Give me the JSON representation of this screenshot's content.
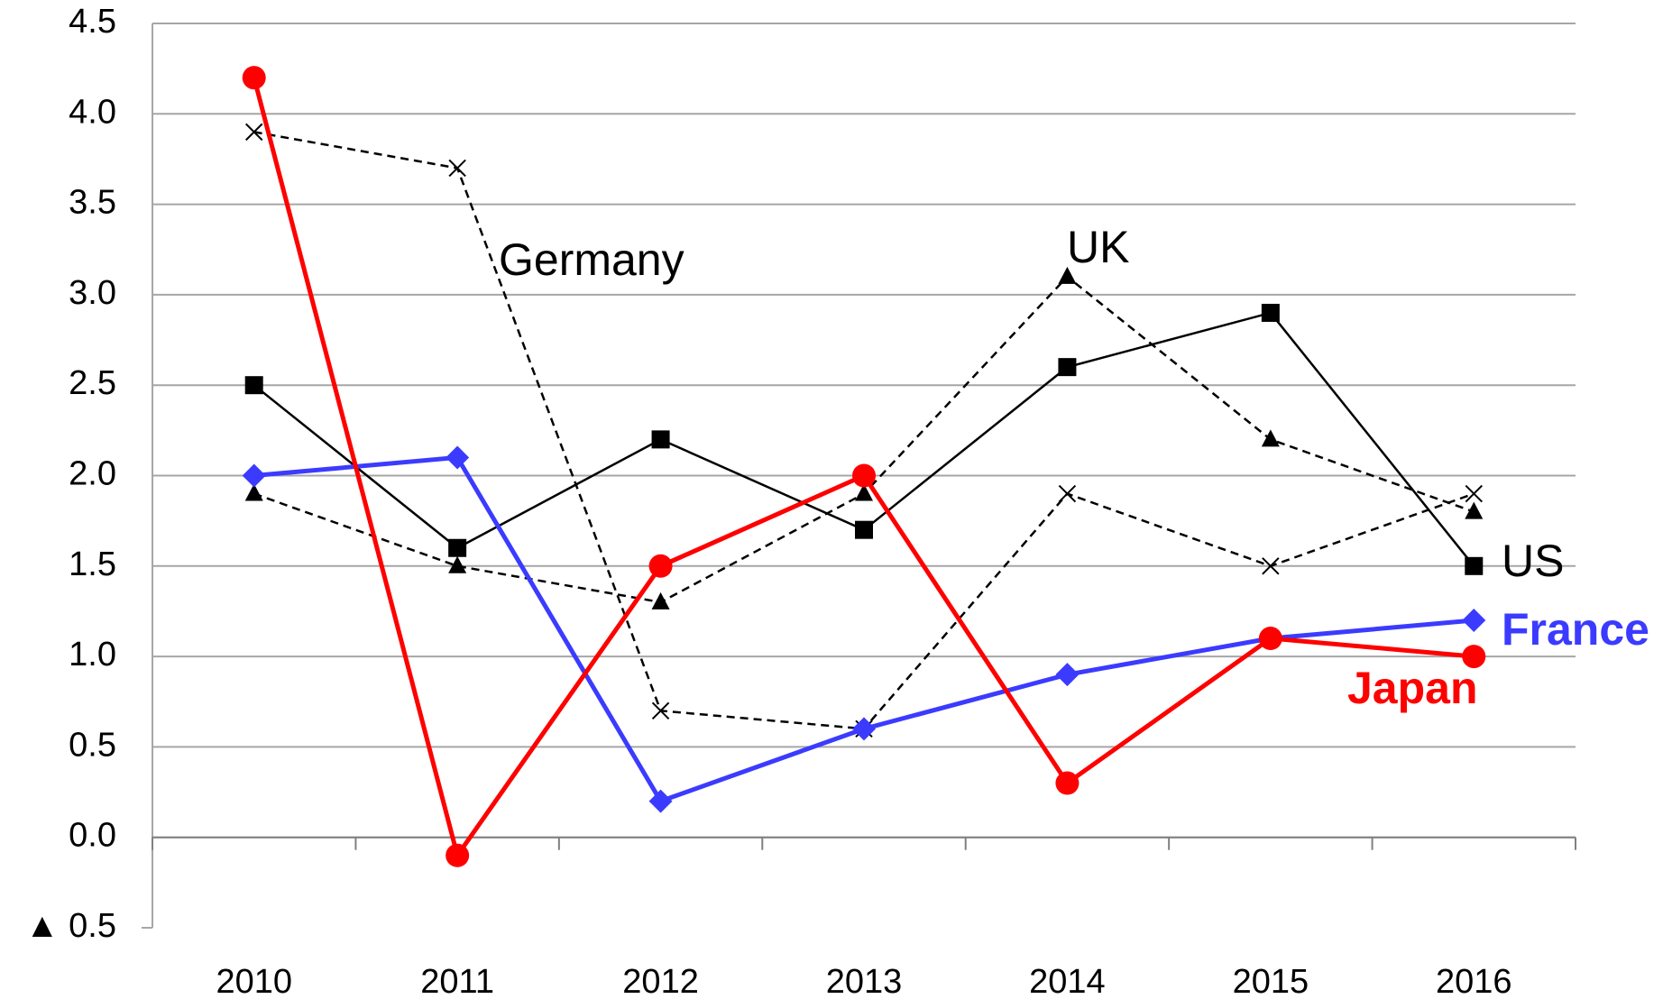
{
  "chart_data": {
    "type": "line",
    "categories": [
      "2010",
      "2011",
      "2012",
      "2013",
      "2014",
      "2015",
      "2016"
    ],
    "series": [
      {
        "name": "Germany",
        "color": "#000000",
        "dashed": true,
        "marker": "x",
        "values": [
          3.9,
          3.7,
          0.7,
          0.6,
          1.9,
          1.5,
          1.9
        ]
      },
      {
        "name": "UK",
        "color": "#000000",
        "dashed": true,
        "marker": "triangle",
        "values": [
          1.9,
          1.5,
          1.3,
          1.9,
          3.1,
          2.2,
          1.8
        ]
      },
      {
        "name": "US",
        "color": "#000000",
        "dashed": false,
        "marker": "square",
        "values": [
          2.5,
          1.6,
          2.2,
          1.7,
          2.6,
          2.9,
          1.5
        ]
      },
      {
        "name": "France",
        "color": "#3b3bff",
        "dashed": false,
        "marker": "diamond",
        "values": [
          2.0,
          2.1,
          0.2,
          0.6,
          0.9,
          1.1,
          1.2
        ]
      },
      {
        "name": "Japan",
        "color": "#ff0000",
        "dashed": false,
        "marker": "circle",
        "values": [
          4.2,
          -0.1,
          1.5,
          2.0,
          0.3,
          1.1,
          1.0
        ]
      }
    ],
    "ylim": [
      -0.5,
      4.5
    ],
    "yticks": [
      {
        "value": -0.5,
        "label": "▲ 0.5"
      },
      {
        "value": 0,
        "label": "0.0"
      },
      0.5,
      {
        "value": 1,
        "label": "1.0"
      },
      1.5,
      {
        "value": 2,
        "label": "2.0"
      },
      2.5,
      {
        "value": 3,
        "label": "3.0"
      },
      3.5,
      {
        "value": 4,
        "label": "4.0"
      },
      4.5
    ],
    "grid": true
  }
}
